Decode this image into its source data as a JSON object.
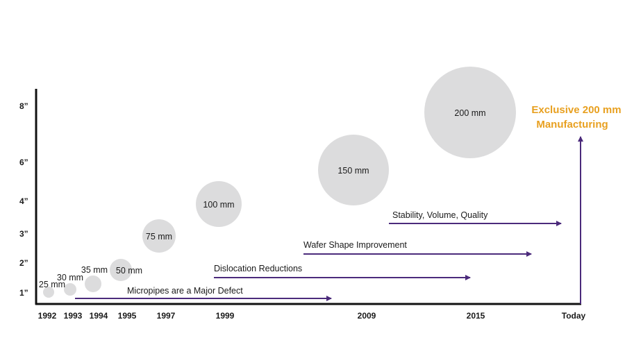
{
  "colors": {
    "axis": "#111111",
    "arrow": "#4b2a7b",
    "circle": "#dcdcdd",
    "callout": "#e8a020"
  },
  "y_axis_ticks": [
    "8”",
    "6”",
    "4”",
    "3”",
    "2”",
    "1”"
  ],
  "x_axis_ticks": [
    "1992",
    "1993",
    "1994",
    "1995",
    "1997",
    "1999",
    "2009",
    "2015",
    "Today"
  ],
  "wafers": [
    {
      "label": "25 mm",
      "year": "1992"
    },
    {
      "label": "30 mm",
      "year": "1993"
    },
    {
      "label": "35 mm",
      "year": "1994"
    },
    {
      "label": "50 mm",
      "year": "1995"
    },
    {
      "label": "75 mm",
      "year": "1997"
    },
    {
      "label": "100 mm",
      "year": "1999"
    },
    {
      "label": "150 mm",
      "year": "2009"
    },
    {
      "label": "200 mm",
      "year": "2015"
    }
  ],
  "milestones": [
    {
      "label": "Micropipes are a Major Defect"
    },
    {
      "label": "Dislocation Reductions"
    },
    {
      "label": "Wafer Shape Improvement"
    },
    {
      "label": "Stability, Volume, Quality"
    }
  ],
  "callout": {
    "line1": "Exclusive 200 mm",
    "line2": "Manufacturing"
  }
}
